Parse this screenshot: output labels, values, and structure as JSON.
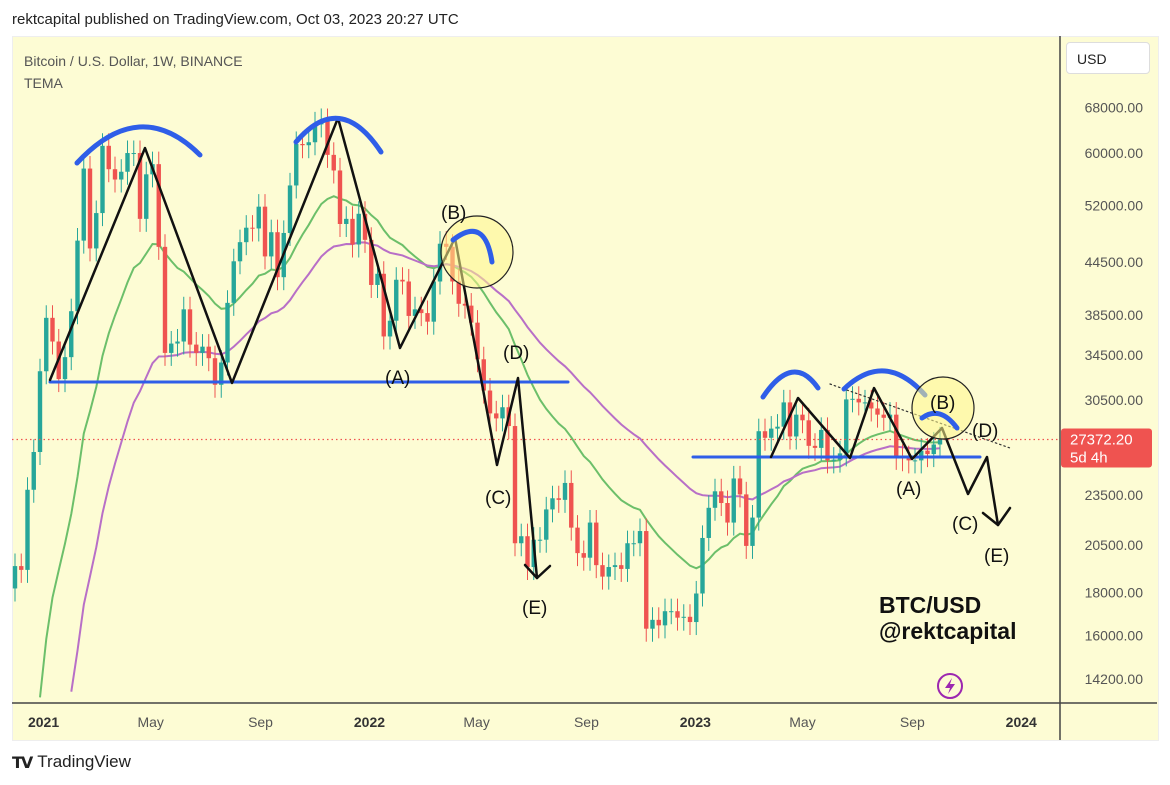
{
  "header": {
    "published": "rektcapital published on TradingView.com, Oct 03, 2023 20:27 UTC"
  },
  "legend": {
    "symbol": "Bitcoin / U.S. Dollar, 1W, BINANCE",
    "indicator": "TEMA"
  },
  "currency_button": "USD",
  "price_label": {
    "price": "27372.20",
    "countdown": "5d 4h",
    "color": "#ef5350"
  },
  "footer": {
    "brand": "TradingView"
  },
  "watermark": {
    "line1": "BTC/USD",
    "line2": "@rektcapital"
  },
  "annotations": {
    "left": [
      "(A)",
      "(B)",
      "(C)",
      "(D)",
      "(E)"
    ],
    "right": [
      "(A)",
      "(B)",
      "(C)",
      "(D)",
      "(E)"
    ]
  },
  "icons": {
    "lightning": "lightning-icon",
    "logo": "tradingview-logo"
  },
  "colors": {
    "up": "#26a69a",
    "down": "#ef5350",
    "fast_line": "#6cbf6a",
    "slow_line": "#b86fc7",
    "drawing_blue": "#2f5ee8",
    "background": "#fdfcd4"
  },
  "chart_data": {
    "type": "candlestick",
    "interval": "1W",
    "title": "Bitcoin / U.S. Dollar, 1W, BINANCE",
    "y_scale": "log",
    "ylim": [
      13500,
      72000
    ],
    "y_ticks": [
      "68000.00",
      "60000.00",
      "52000.00",
      "44500.00",
      "38500.00",
      "34500.00",
      "30500.00",
      "23500.00",
      "20500.00",
      "18000.00",
      "16000.00",
      "14200.00"
    ],
    "x_ticks": [
      {
        "label": "2021",
        "date": "2021-01-01",
        "bold": true
      },
      {
        "label": "May",
        "date": "2021-05-01"
      },
      {
        "label": "Sep",
        "date": "2021-09-01"
      },
      {
        "label": "2022",
        "date": "2022-01-01",
        "bold": true
      },
      {
        "label": "May",
        "date": "2022-05-01"
      },
      {
        "label": "Sep",
        "date": "2022-09-01"
      },
      {
        "label": "2023",
        "date": "2023-01-01",
        "bold": true
      },
      {
        "label": "May",
        "date": "2023-05-01"
      },
      {
        "label": "Sep",
        "date": "2023-09-01"
      },
      {
        "label": "2024",
        "date": "2024-01-01",
        "bold": true
      }
    ],
    "start_week": "2020-11-30",
    "first_open": 18200,
    "closes": [
      19350,
      19150,
      23850,
      26450,
      33000,
      38200,
      35800,
      32300,
      34300,
      38900,
      47200,
      57500,
      46200,
      50900,
      61200,
      57400,
      55800,
      57000,
      60000,
      60000,
      50100,
      56600,
      58200,
      46400,
      34700,
      35600,
      35800,
      39100,
      35500,
      34700,
      35300,
      34200,
      31800,
      33800,
      39800,
      44600,
      47000,
      48900,
      48800,
      51800,
      45200,
      48300,
      42700,
      48200,
      54900,
      61500,
      61300,
      61800,
      64900,
      65500,
      59700,
      57200,
      49400,
      50100,
      46700,
      50800,
      47300,
      41800,
      43100,
      36300,
      37900,
      42400,
      42200,
      38400,
      39100,
      38700,
      37800,
      42200,
      46800,
      46400,
      42200,
      39700,
      39500,
      37700,
      34100,
      31300,
      29400,
      29000,
      29900,
      28400,
      20600,
      21000,
      19300,
      20800,
      20800,
      22600,
      23300,
      23200,
      24300,
      21500,
      20050,
      19800,
      21800,
      19400,
      18800,
      19300,
      19400,
      19200,
      20600,
      20600,
      21300,
      16300,
      16700,
      16450,
      17100,
      17100,
      16800,
      16840,
      16600,
      17950,
      20900,
      22700,
      23750,
      23000,
      21800,
      24600,
      23550,
      20450,
      22100,
      28000,
      27500,
      28200,
      28350,
      30300,
      27600,
      29300,
      28850,
      26900,
      26750,
      28100,
      25850,
      25900,
      26350,
      30550,
      30600,
      30300,
      30300,
      29800,
      29300,
      29050,
      29300,
      26100,
      26000,
      25850,
      25850,
      26550,
      26300,
      27000,
      27372.2
    ],
    "last_price": 27372.2,
    "overlays": [
      {
        "type": "TEMA",
        "color": "#6cbf6a"
      },
      {
        "type": "TEMA",
        "color": "#b86fc7"
      }
    ]
  }
}
